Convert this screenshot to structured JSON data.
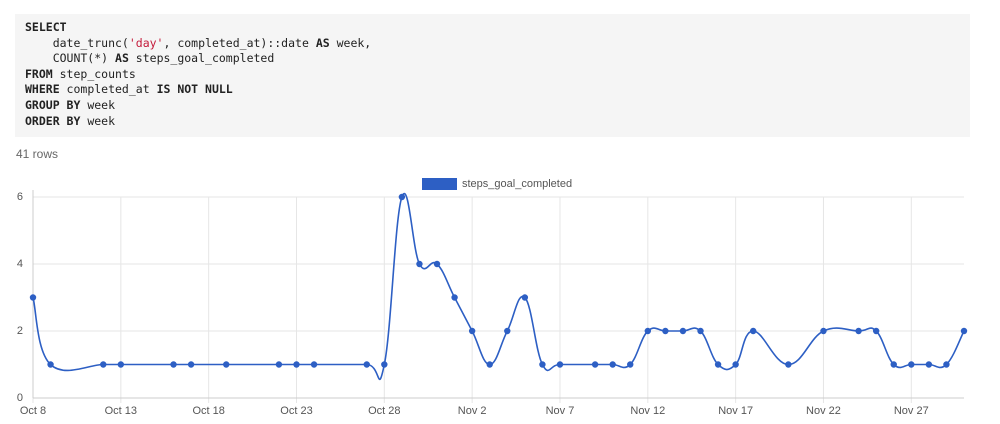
{
  "query": [
    [
      {
        "text": "SELECT",
        "style": "keyword"
      }
    ],
    [
      {
        "text": "    date_trunc(",
        "style": "plain"
      },
      {
        "text": "'day'",
        "style": "string"
      },
      {
        "text": ", completed_at)::date ",
        "style": "plain"
      },
      {
        "text": "AS",
        "style": "keyword"
      },
      {
        "text": " week,",
        "style": "plain"
      }
    ],
    [
      {
        "text": "    COUNT(*) ",
        "style": "plain"
      },
      {
        "text": "AS",
        "style": "keyword"
      },
      {
        "text": " steps_goal_completed",
        "style": "plain"
      }
    ],
    [
      {
        "text": "FROM",
        "style": "keyword"
      },
      {
        "text": " step_counts",
        "style": "plain"
      }
    ],
    [
      {
        "text": "WHERE",
        "style": "keyword"
      },
      {
        "text": " completed_at ",
        "style": "plain"
      },
      {
        "text": "IS NOT NULL",
        "style": "keyword"
      }
    ],
    [
      {
        "text": "GROUP BY",
        "style": "keyword"
      },
      {
        "text": " week",
        "style": "plain"
      }
    ],
    [
      {
        "text": "ORDER BY",
        "style": "keyword"
      },
      {
        "text": " week",
        "style": "plain"
      }
    ]
  ],
  "row_count": "41 rows",
  "chart_data": {
    "type": "line",
    "x": [
      "Oct 8",
      "Oct 9",
      "Oct 12",
      "Oct 13",
      "Oct 16",
      "Oct 17",
      "Oct 19",
      "Oct 22",
      "Oct 23",
      "Oct 24",
      "Oct 27",
      "Oct 28",
      "Oct 29",
      "Oct 30",
      "Oct 31",
      "Nov 1",
      "Nov 2",
      "Nov 3",
      "Nov 4",
      "Nov 5",
      "Nov 6",
      "Nov 7",
      "Nov 9",
      "Nov 10",
      "Nov 11",
      "Nov 12",
      "Nov 13",
      "Nov 14",
      "Nov 15",
      "Nov 16",
      "Nov 17",
      "Nov 18",
      "Nov 20",
      "Nov 22",
      "Nov 24",
      "Nov 25",
      "Nov 26",
      "Nov 27",
      "Nov 28",
      "Nov 29",
      "Nov 30"
    ],
    "series": [
      {
        "name": "steps_goal_completed",
        "color": "#2d5fc4",
        "values": [
          3,
          1,
          1,
          1,
          1,
          1,
          1,
          1,
          1,
          1,
          1,
          1,
          6,
          4,
          4,
          3,
          2,
          1,
          2,
          3,
          1,
          1,
          1,
          1,
          1,
          2,
          2,
          2,
          2,
          1,
          1,
          2,
          1,
          2,
          2,
          2,
          1,
          1,
          1,
          1,
          2
        ]
      }
    ],
    "xlim": [
      "Oct 8",
      "Nov 30"
    ],
    "xticks": [
      "Oct 8",
      "Oct 13",
      "Oct 18",
      "Oct 23",
      "Oct 28",
      "Nov 2",
      "Nov 7",
      "Nov 12",
      "Nov 17",
      "Nov 22",
      "Nov 27"
    ],
    "ylim": [
      0,
      6
    ],
    "yticks": [
      0,
      2,
      4,
      6
    ],
    "grid": true,
    "legend": "top"
  }
}
